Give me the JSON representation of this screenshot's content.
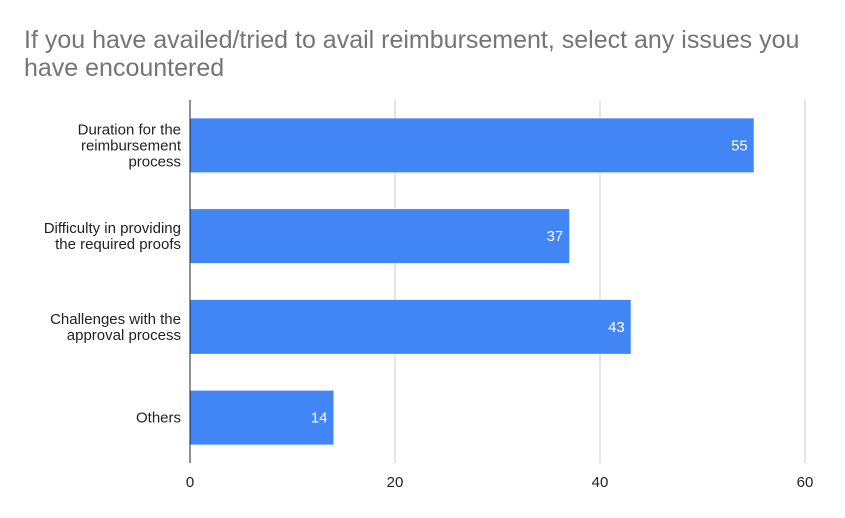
{
  "chart_data": {
    "type": "bar",
    "orientation": "horizontal",
    "title": "If you have availed/tried to avail reimbursement, select any issues you have encountered",
    "categories": [
      [
        "Duration for the",
        "reimbursement",
        "process"
      ],
      [
        "Difficulty in providing",
        "the required proofs"
      ],
      [
        "Challenges with the",
        "approval process"
      ],
      [
        "Others"
      ]
    ],
    "values": [
      55,
      37,
      43,
      14
    ],
    "xlim": [
      0,
      60
    ],
    "xticks": [
      0,
      20,
      40,
      60
    ],
    "grid": true,
    "data_labels": true,
    "bar_color": "#4285f4",
    "grid_color": "#cccccc",
    "axis_color": "#222222"
  }
}
